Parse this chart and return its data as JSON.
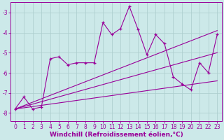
{
  "xlabel": "Windchill (Refroidissement éolien,°C)",
  "bg_color": "#cce9e9",
  "grid_color": "#aacccc",
  "line_color": "#990099",
  "xlim": [
    -0.5,
    23.5
  ],
  "ylim": [
    -8.4,
    -2.5
  ],
  "yticks": [
    -8,
    -7,
    -6,
    -5,
    -4,
    -3
  ],
  "xticks": [
    0,
    1,
    2,
    3,
    4,
    5,
    6,
    7,
    8,
    9,
    10,
    11,
    12,
    13,
    14,
    15,
    16,
    17,
    18,
    19,
    20,
    21,
    22,
    23
  ],
  "series1_x": [
    0,
    1,
    2,
    3,
    4,
    5,
    6,
    7,
    8,
    9,
    10,
    11,
    12,
    13,
    14,
    15,
    16,
    17,
    18,
    19,
    20,
    21,
    22,
    23
  ],
  "series1_y": [
    -7.8,
    -7.2,
    -7.8,
    -7.7,
    -5.3,
    -5.2,
    -5.6,
    -5.5,
    -5.5,
    -5.5,
    -3.5,
    -4.1,
    -3.8,
    -2.7,
    -3.85,
    -5.1,
    -4.1,
    -4.55,
    -6.2,
    -6.55,
    -6.85,
    -5.5,
    -6.0,
    -4.1
  ],
  "trend1_x": [
    0,
    23
  ],
  "trend1_y": [
    -7.8,
    -3.9
  ],
  "trend2_x": [
    0,
    23
  ],
  "trend2_y": [
    -7.8,
    -5.0
  ],
  "trend3_x": [
    0,
    23
  ],
  "trend3_y": [
    -7.8,
    -6.4
  ],
  "tick_fontsize": 5.5,
  "xlabel_fontsize": 6.5
}
